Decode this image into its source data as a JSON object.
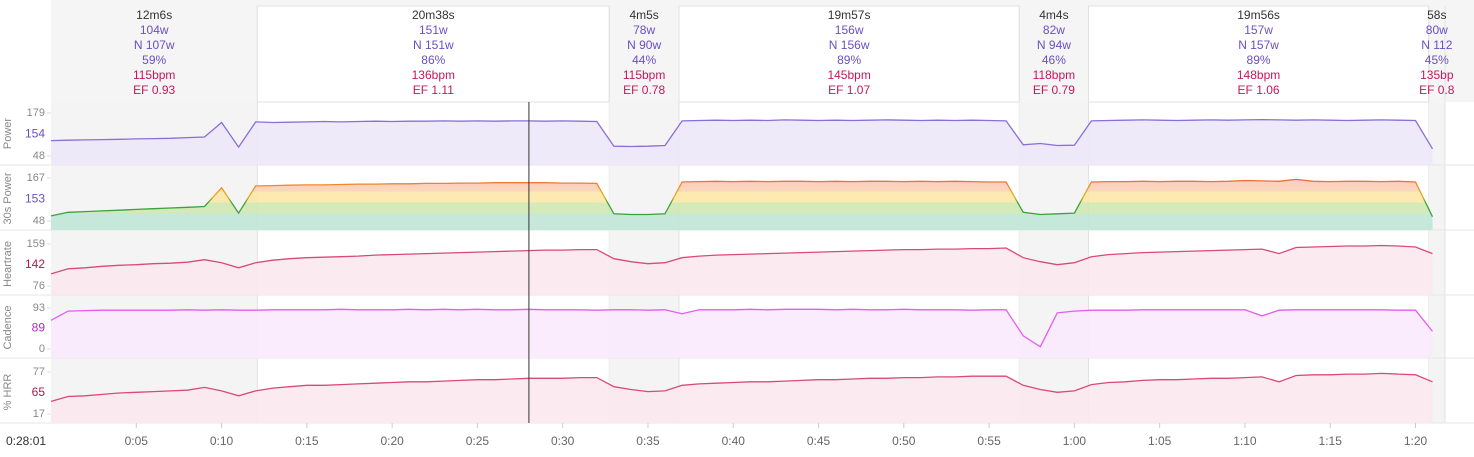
{
  "chart_data": {
    "type": "line",
    "x": [
      0,
      1,
      2,
      3,
      4,
      5,
      6,
      7,
      8,
      9,
      10,
      11,
      12,
      13,
      14,
      15,
      16,
      17,
      18,
      19,
      20,
      21,
      22,
      23,
      24,
      25,
      26,
      27,
      28,
      29,
      30,
      31,
      32,
      33,
      34,
      35,
      36,
      37,
      38,
      39,
      40,
      41,
      42,
      43,
      44,
      45,
      46,
      47,
      48,
      49,
      50,
      51,
      52,
      53,
      54,
      55,
      56,
      57,
      58,
      59,
      60,
      61,
      62,
      63,
      64,
      65,
      66,
      67,
      68,
      69,
      70,
      71,
      72,
      73,
      74,
      75,
      76,
      77,
      78,
      79,
      80,
      81
    ],
    "xlim": [
      0,
      81.73
    ],
    "xticks": [
      {
        "value": 5,
        "label": "0:05"
      },
      {
        "value": 10,
        "label": "0:10"
      },
      {
        "value": 15,
        "label": "0:15"
      },
      {
        "value": 20,
        "label": "0:20"
      },
      {
        "value": 25,
        "label": "0:25"
      },
      {
        "value": 30,
        "label": "0:30"
      },
      {
        "value": 35,
        "label": "0:35"
      },
      {
        "value": 40,
        "label": "0:40"
      },
      {
        "value": 45,
        "label": "0:45"
      },
      {
        "value": 50,
        "label": "0:50"
      },
      {
        "value": 55,
        "label": "0:55"
      },
      {
        "value": 60,
        "label": "1:00"
      },
      {
        "value": 65,
        "label": "1:05"
      },
      {
        "value": 70,
        "label": "1:10"
      },
      {
        "value": 75,
        "label": "1:15"
      },
      {
        "value": 80,
        "label": "1:20"
      }
    ],
    "cursor": {
      "x": 28.02,
      "label": "0:28:01"
    },
    "intervals": [
      {
        "start": 0,
        "end": 12.1,
        "work": false,
        "duration": "12m6s",
        "power": "104w",
        "np": "N 107w",
        "percent": "59%",
        "hr": "115bpm",
        "ef": "EF 0.93"
      },
      {
        "start": 12.1,
        "end": 32.73,
        "work": true,
        "duration": "20m38s",
        "power": "151w",
        "np": "N 151w",
        "percent": "86%",
        "hr": "136bpm",
        "ef": "EF 1.11"
      },
      {
        "start": 32.73,
        "end": 36.82,
        "work": false,
        "duration": "4m5s",
        "power": "78w",
        "np": "N 90w",
        "percent": "44%",
        "hr": "115bpm",
        "ef": "EF 0.78"
      },
      {
        "start": 36.82,
        "end": 56.77,
        "work": true,
        "duration": "19m57s",
        "power": "156w",
        "np": "N 156w",
        "percent": "89%",
        "hr": "145bpm",
        "ef": "EF 1.07"
      },
      {
        "start": 56.77,
        "end": 60.83,
        "work": false,
        "duration": "4m4s",
        "power": "82w",
        "np": "N 94w",
        "percent": "46%",
        "hr": "118bpm",
        "ef": "EF 0.79"
      },
      {
        "start": 60.83,
        "end": 80.77,
        "work": true,
        "duration": "19m56s",
        "power": "157w",
        "np": "N 157w",
        "percent": "89%",
        "hr": "148bpm",
        "ef": "EF 1.06"
      },
      {
        "start": 80.77,
        "end": 81.73,
        "work": false,
        "duration": "58s",
        "power": "80w",
        "np": "N 112",
        "percent": "45%",
        "hr": "135bp",
        "ef": "EF 0.8"
      }
    ],
    "panels": [
      {
        "name": "Power",
        "color": "#8a6fd8",
        "fill": "#ece8f8",
        "label_color": "#6a4fc4",
        "ylim": [
          48,
          179
        ],
        "yticks": [
          48,
          179
        ],
        "cursor_value": 154,
        "values": [
          95,
          96,
          97,
          98,
          99,
          100,
          101,
          102,
          104,
          106,
          150,
          75,
          152,
          150,
          151,
          152,
          153,
          152,
          153,
          154,
          153,
          154,
          154,
          155,
          154,
          155,
          154,
          155,
          155,
          154,
          155,
          154,
          153,
          78,
          77,
          78,
          80,
          155,
          156,
          157,
          156,
          157,
          156,
          158,
          157,
          156,
          157,
          156,
          157,
          158,
          157,
          156,
          157,
          156,
          157,
          156,
          155,
          82,
          86,
          80,
          81,
          155,
          156,
          157,
          158,
          157,
          156,
          157,
          158,
          157,
          158,
          159,
          158,
          157,
          158,
          157,
          156,
          157,
          158,
          157,
          156,
          70
        ]
      },
      {
        "name": "30s Power",
        "color": "url(#zoneLine)",
        "fill": "url(#zoneFill)",
        "label_color": "#6a4fc4",
        "ylim": [
          48,
          167
        ],
        "yticks": [
          48,
          167
        ],
        "cursor_value": 153,
        "values": [
          62,
          72,
          74,
          76,
          78,
          80,
          82,
          84,
          86,
          88,
          140,
          70,
          145,
          146,
          147,
          148,
          148,
          149,
          150,
          150,
          151,
          151,
          152,
          152,
          153,
          153,
          154,
          154,
          154,
          154,
          153,
          153,
          152,
          68,
          66,
          66,
          68,
          156,
          157,
          158,
          157,
          158,
          157,
          158,
          158,
          157,
          158,
          157,
          158,
          158,
          157,
          158,
          157,
          158,
          157,
          156,
          156,
          72,
          66,
          68,
          70,
          156,
          157,
          157,
          158,
          157,
          158,
          158,
          157,
          158,
          160,
          159,
          158,
          163,
          158,
          157,
          158,
          158,
          157,
          158,
          156,
          60
        ]
      },
      {
        "name": "Heartrate",
        "color": "#d84a7a",
        "fill": "#fbe9ef",
        "label_color": "#b0174f",
        "ylim": [
          76,
          159
        ],
        "yticks": [
          76,
          159
        ],
        "cursor_value": 142,
        "values": [
          100,
          110,
          112,
          115,
          117,
          118,
          120,
          121,
          123,
          128,
          122,
          112,
          122,
          127,
          130,
          132,
          133,
          134,
          135,
          137,
          138,
          139,
          140,
          141,
          142,
          143,
          144,
          145,
          146,
          147,
          147,
          148,
          148,
          130,
          124,
          120,
          122,
          132,
          135,
          137,
          138,
          139,
          140,
          141,
          142,
          143,
          144,
          145,
          146,
          147,
          148,
          148,
          149,
          149,
          150,
          150,
          151,
          132,
          124,
          118,
          122,
          134,
          138,
          140,
          142,
          143,
          144,
          145,
          146,
          147,
          148,
          149,
          140,
          152,
          153,
          154,
          155,
          155,
          156,
          155,
          153,
          140
        ]
      },
      {
        "name": "Cadence",
        "color": "#e35cf0",
        "fill": "#fbeafd",
        "label_color": "#c21fd6",
        "ylim": [
          0,
          93
        ],
        "yticks": [
          0,
          93
        ],
        "cursor_value": 89,
        "values": [
          65,
          86,
          87,
          88,
          88,
          88,
          88,
          88,
          89,
          88,
          89,
          88,
          88,
          89,
          89,
          89,
          89,
          90,
          89,
          89,
          89,
          90,
          89,
          90,
          89,
          90,
          89,
          89,
          90,
          89,
          89,
          89,
          88,
          89,
          89,
          88,
          89,
          80,
          89,
          89,
          89,
          90,
          89,
          90,
          90,
          90,
          89,
          90,
          89,
          89,
          90,
          89,
          89,
          89,
          88,
          89,
          89,
          30,
          5,
          82,
          86,
          88,
          88,
          88,
          89,
          89,
          89,
          89,
          89,
          89,
          89,
          75,
          88,
          89,
          89,
          89,
          89,
          89,
          89,
          88,
          88,
          40
        ]
      },
      {
        "name": "% HRR",
        "color": "#d84a7a",
        "fill": "#fbe9ef",
        "label_color": "#b0174f",
        "ylim": [
          17,
          77
        ],
        "yticks": [
          17,
          77
        ],
        "cursor_value": 65,
        "values": [
          35,
          42,
          43,
          45,
          47,
          48,
          49,
          50,
          51,
          55,
          50,
          43,
          50,
          54,
          56,
          58,
          58,
          59,
          60,
          61,
          62,
          63,
          63,
          64,
          65,
          66,
          66,
          67,
          68,
          68,
          68,
          69,
          69,
          56,
          52,
          49,
          50,
          58,
          60,
          61,
          62,
          63,
          63,
          64,
          65,
          66,
          66,
          67,
          68,
          68,
          69,
          69,
          70,
          70,
          71,
          71,
          71,
          58,
          52,
          48,
          50,
          59,
          62,
          63,
          65,
          66,
          66,
          67,
          68,
          68,
          69,
          70,
          63,
          72,
          73,
          73,
          74,
          74,
          75,
          74,
          73,
          63
        ]
      }
    ]
  }
}
